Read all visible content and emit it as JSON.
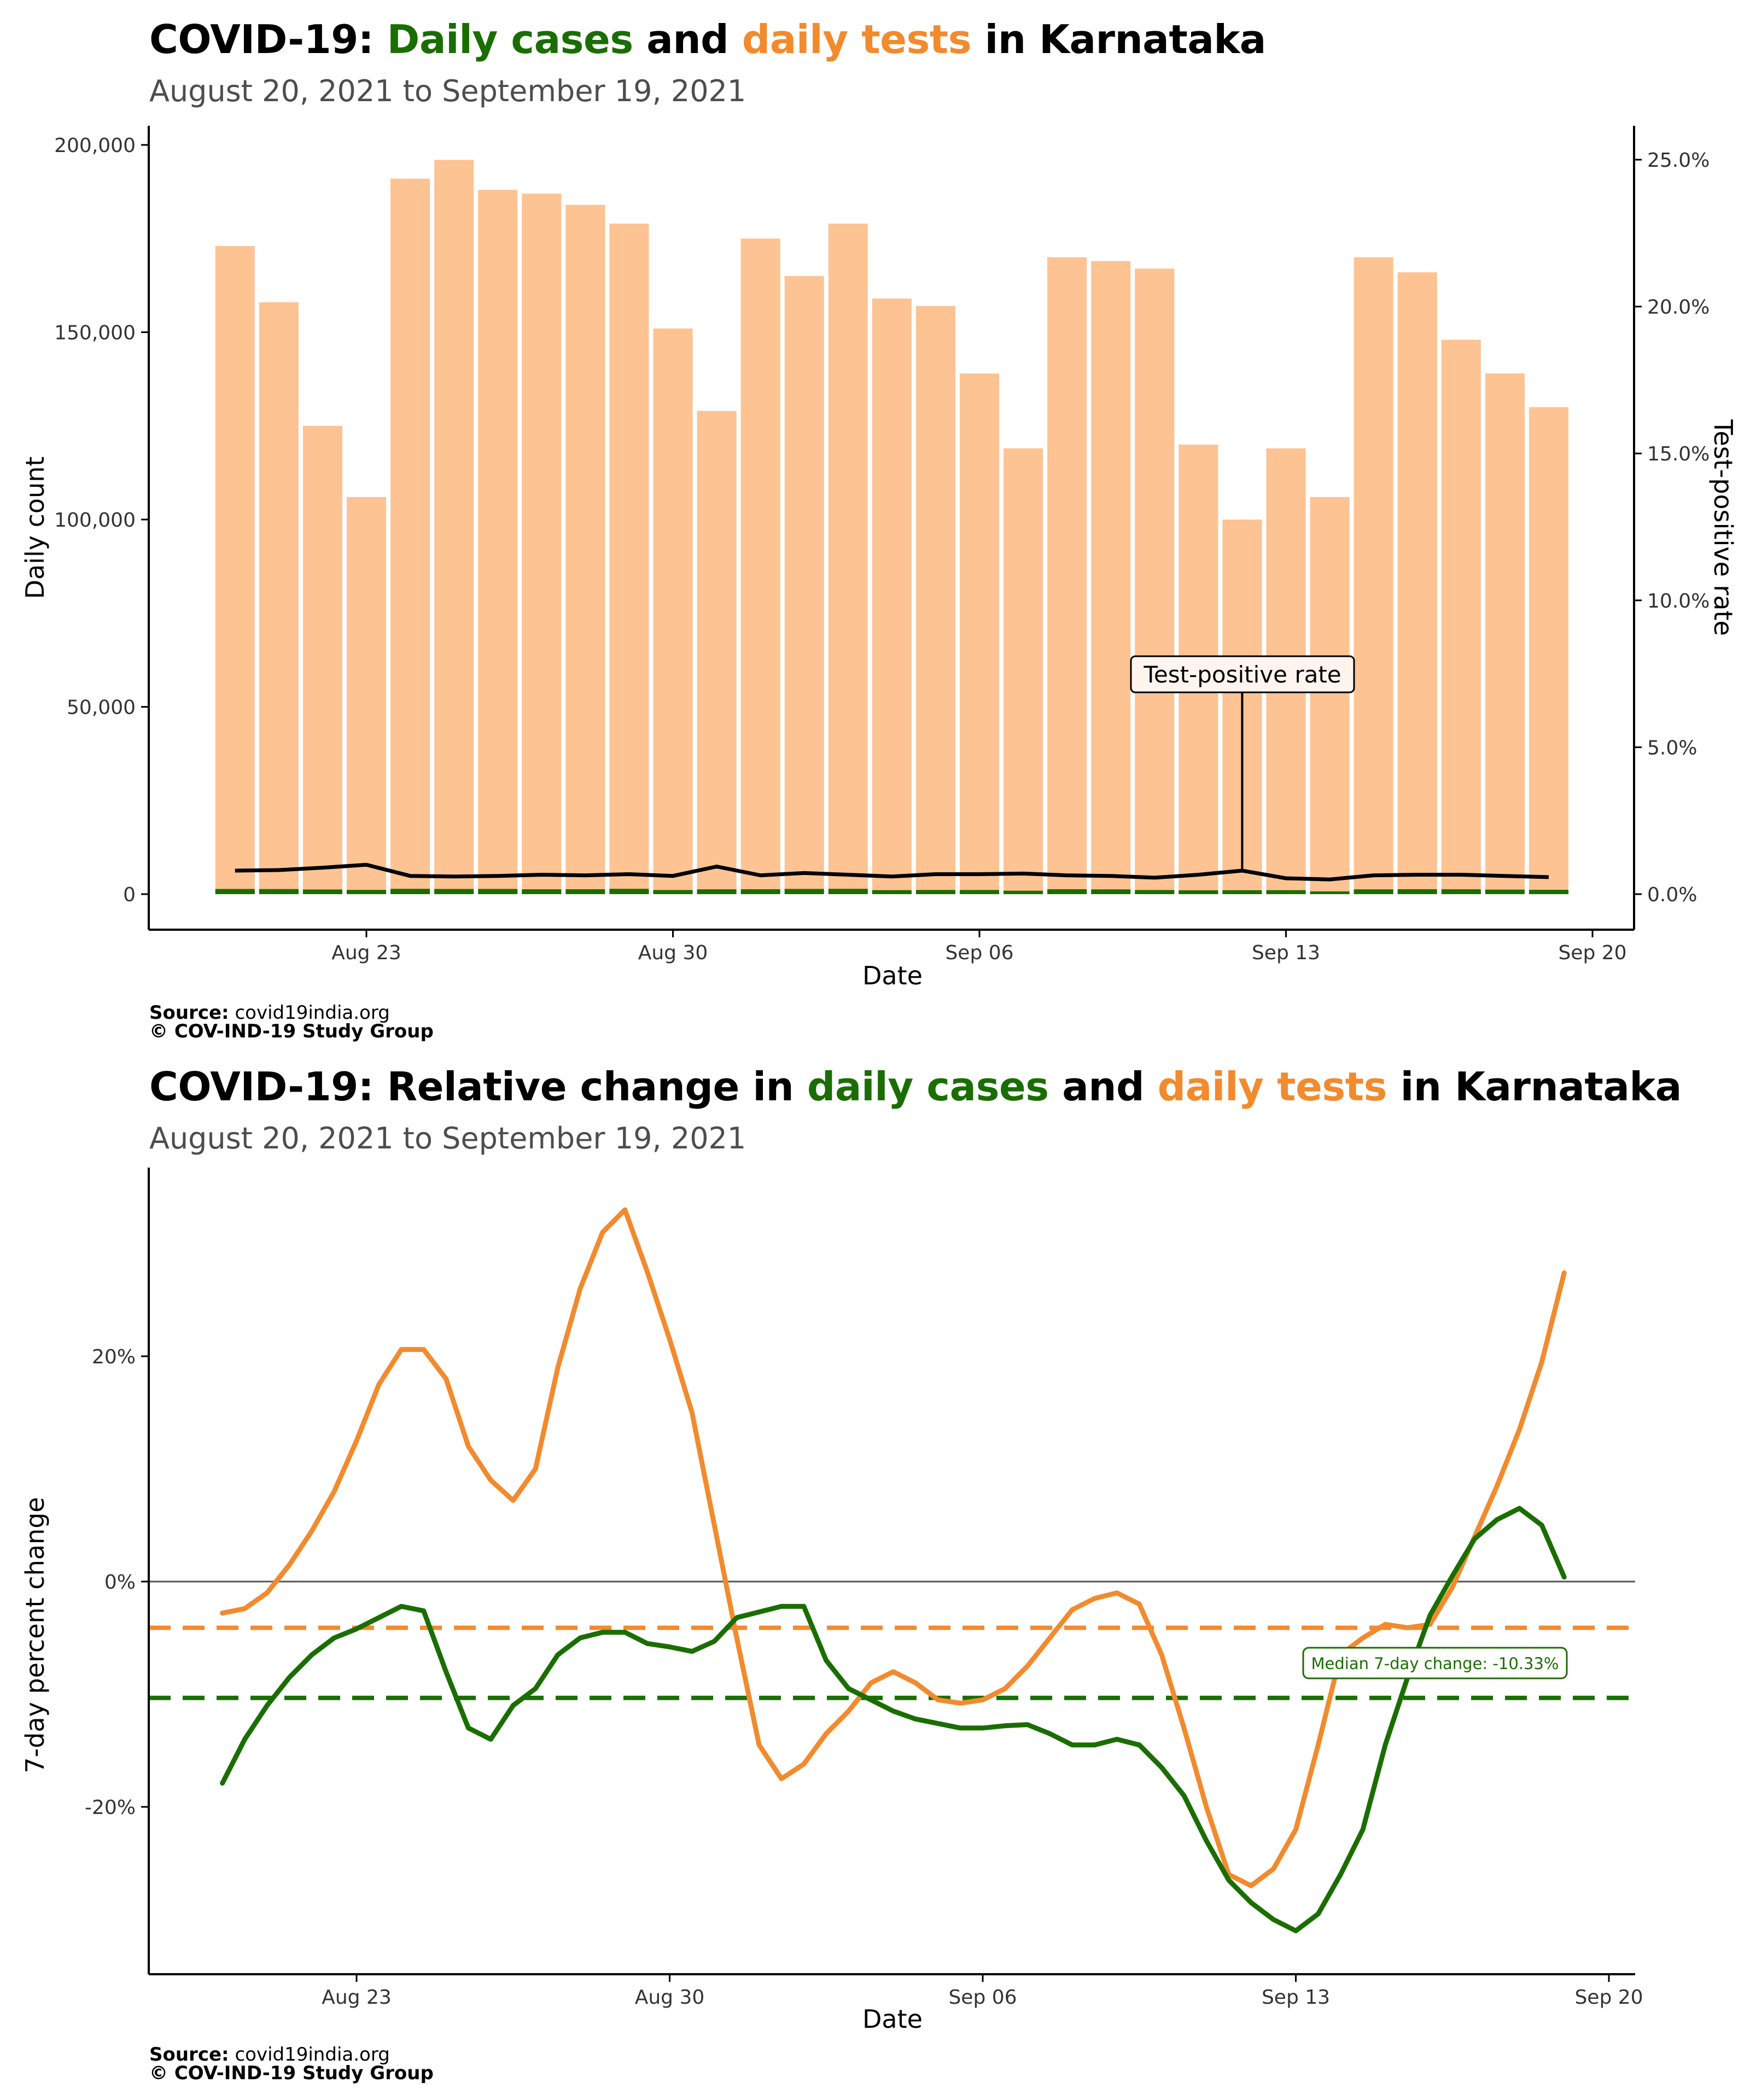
{
  "chart1": {
    "title": {
      "p1": "COVID-19: ",
      "p2": "Daily cases",
      "p3": " and ",
      "p4": "daily tests",
      "p5": " in Karnataka"
    },
    "subtitle": "August 20, 2021 to September 19, 2021",
    "source_label": "Source:",
    "source": "covid19india.org",
    "copyright": "© COV-IND-19 Study Group"
  },
  "chart2": {
    "title": {
      "p1": "COVID-19: Relative change in ",
      "p2": "daily cases",
      "p3": " and ",
      "p4": "daily tests",
      "p5": " in Karnataka"
    },
    "subtitle": "August 20, 2021 to September 19, 2021",
    "source_label": "Source:",
    "source": "covid19india.org",
    "copyright": "© COV-IND-19 Study Group"
  },
  "colors": {
    "cases": "#1a6e00",
    "tests": "#f28a2e",
    "tests_bar": "#fdc393",
    "tpr": "#000000"
  },
  "chart_data": [
    {
      "type": "bar",
      "xlabel": "Date",
      "ylabel": "Daily count",
      "y2label": "Test-positive rate",
      "annotation": "Test-positive rate",
      "annotation_date": "2021-09-12",
      "x_ticks": [
        {
          "label": "Aug 23",
          "date": "2021-08-23"
        },
        {
          "label": "Aug 30",
          "date": "2021-08-30"
        },
        {
          "label": "Sep 06",
          "date": "2021-09-06"
        },
        {
          "label": "Sep 13",
          "date": "2021-09-13"
        },
        {
          "label": "Sep 20",
          "date": "2021-09-20"
        }
      ],
      "y_ticks": [
        {
          "label": "0",
          "value": 0
        },
        {
          "label": "50,000",
          "value": 50000
        },
        {
          "label": "100,000",
          "value": 100000
        },
        {
          "label": "150,000",
          "value": 150000
        },
        {
          "label": "200,000",
          "value": 200000
        }
      ],
      "y2_ticks": [
        {
          "label": "0.0%",
          "value": 0
        },
        {
          "label": "5.0%",
          "value": 5
        },
        {
          "label": "10.0%",
          "value": 10
        },
        {
          "label": "15.0%",
          "value": 15
        },
        {
          "label": "20.0%",
          "value": 20
        },
        {
          "label": "25.0%",
          "value": 25
        }
      ],
      "ylim": [
        0,
        203000
      ],
      "y2lim": [
        0,
        25.4
      ],
      "dates": [
        "2021-08-20",
        "2021-08-21",
        "2021-08-22",
        "2021-08-23",
        "2021-08-24",
        "2021-08-25",
        "2021-08-26",
        "2021-08-27",
        "2021-08-28",
        "2021-08-29",
        "2021-08-30",
        "2021-08-31",
        "2021-09-01",
        "2021-09-02",
        "2021-09-03",
        "2021-09-04",
        "2021-09-05",
        "2021-09-06",
        "2021-09-07",
        "2021-09-08",
        "2021-09-09",
        "2021-09-10",
        "2021-09-11",
        "2021-09-12",
        "2021-09-13",
        "2021-09-14",
        "2021-09-15",
        "2021-09-16",
        "2021-09-17",
        "2021-09-18",
        "2021-09-19"
      ],
      "series": [
        {
          "name": "daily tests",
          "values": [
            173000,
            158000,
            125000,
            106000,
            191000,
            196000,
            188000,
            187000,
            184000,
            179000,
            151000,
            129000,
            175000,
            165000,
            179000,
            159000,
            157000,
            139000,
            119000,
            170000,
            169000,
            167000,
            120000,
            100000,
            119000,
            106000,
            170000,
            166000,
            148000,
            139000,
            130000
          ]
        },
        {
          "name": "daily cases",
          "values": [
            1380,
            1360,
            1250,
            1140,
            1420,
            1380,
            1390,
            1300,
            1310,
            1420,
            1100,
            1290,
            1310,
            1390,
            1420,
            1070,
            1120,
            1110,
            920,
            1320,
            1270,
            1100,
            1030,
            1050,
            1060,
            730,
            1280,
            1320,
            1300,
            1210,
            1160
          ]
        },
        {
          "name": "test-positive rate",
          "values": [
            0.8,
            0.82,
            0.9,
            1.0,
            0.62,
            0.6,
            0.62,
            0.66,
            0.64,
            0.68,
            0.62,
            0.94,
            0.64,
            0.72,
            0.66,
            0.6,
            0.68,
            0.68,
            0.7,
            0.64,
            0.62,
            0.56,
            0.66,
            0.8,
            0.54,
            0.5,
            0.64,
            0.66,
            0.66,
            0.62,
            0.58
          ]
        }
      ]
    },
    {
      "type": "line",
      "xlabel": "Date",
      "ylabel": "7-day percent change",
      "annotation": "Median 7-day change: -10.33%",
      "x_ticks": [
        {
          "label": "Aug 23",
          "date": "2021-08-23"
        },
        {
          "label": "Aug 30",
          "date": "2021-08-30"
        },
        {
          "label": "Sep 06",
          "date": "2021-09-06"
        },
        {
          "label": "Sep 13",
          "date": "2021-09-13"
        },
        {
          "label": "Sep 20",
          "date": "2021-09-20"
        }
      ],
      "y_ticks": [
        {
          "label": "-20%",
          "value": -20
        },
        {
          "label": "0%",
          "value": 0
        },
        {
          "label": "20%",
          "value": 20
        }
      ],
      "ylim": [
        -34.4,
        36.4
      ],
      "median_tests": -4.1,
      "median_cases": -10.33,
      "dates": [
        "2021-08-20",
        "2021-08-20.5",
        "2021-08-21",
        "2021-08-21.5",
        "2021-08-22",
        "2021-08-22.5",
        "2021-08-23",
        "2021-08-23.5",
        "2021-08-24",
        "2021-08-24.5",
        "2021-08-25",
        "2021-08-25.5",
        "2021-08-26",
        "2021-08-26.5",
        "2021-08-27",
        "2021-08-27.5",
        "2021-08-28",
        "2021-08-28.5",
        "2021-08-29",
        "2021-08-29.5",
        "2021-08-30",
        "2021-08-30.5",
        "2021-08-31",
        "2021-08-31.5",
        "2021-09-01",
        "2021-09-01.5",
        "2021-09-02",
        "2021-09-02.5",
        "2021-09-03",
        "2021-09-03.5",
        "2021-09-04",
        "2021-09-04.5",
        "2021-09-05",
        "2021-09-05.5",
        "2021-09-06",
        "2021-09-06.5",
        "2021-09-07",
        "2021-09-07.5",
        "2021-09-08",
        "2021-09-08.5",
        "2021-09-09",
        "2021-09-09.5",
        "2021-09-10",
        "2021-09-10.5",
        "2021-09-11",
        "2021-09-11.5",
        "2021-09-12",
        "2021-09-12.5",
        "2021-09-13",
        "2021-09-13.5",
        "2021-09-14",
        "2021-09-14.5",
        "2021-09-15",
        "2021-09-15.5",
        "2021-09-16",
        "2021-09-16.5",
        "2021-09-17",
        "2021-09-17.5",
        "2021-09-18",
        "2021-09-18.5",
        "2021-09-19"
      ],
      "series": [
        {
          "name": "daily tests",
          "values": [
            -2.8,
            -2.4,
            -1.0,
            1.5,
            4.5,
            8.0,
            12.5,
            17.5,
            20.6,
            20.6,
            18.0,
            12.0,
            9.0,
            7.2,
            10.0,
            19.0,
            26.0,
            31.0,
            33.0,
            27.5,
            21.5,
            15.0,
            5.0,
            -5.0,
            -14.5,
            -17.5,
            -16.2,
            -13.5,
            -11.5,
            -9.0,
            -8.0,
            -9.0,
            -10.5,
            -10.8,
            -10.5,
            -9.5,
            -7.5,
            -5.0,
            -2.5,
            -1.5,
            -1.0,
            -2.0,
            -6.5,
            -13.0,
            -20.0,
            -26.0,
            -27.0,
            -25.5,
            -22.0,
            -14.5,
            -6.5,
            -5.0,
            -3.8,
            -4.1,
            -3.8,
            -0.5,
            4.0,
            8.5,
            13.5,
            19.5,
            27.4
          ]
        },
        {
          "name": "daily cases",
          "values": [
            -17.9,
            -14.0,
            -11.0,
            -8.5,
            -6.5,
            -5.0,
            -4.2,
            -3.2,
            -2.2,
            -2.6,
            -8.0,
            -13.0,
            -14.0,
            -11.0,
            -9.5,
            -6.5,
            -5.0,
            -4.5,
            -4.5,
            -5.5,
            -5.8,
            -6.2,
            -5.3,
            -3.2,
            -2.7,
            -2.2,
            -2.2,
            -7.0,
            -9.5,
            -10.5,
            -11.5,
            -12.2,
            -12.6,
            -13.0,
            -13.0,
            -12.8,
            -12.7,
            -13.5,
            -14.5,
            -14.5,
            -14.0,
            -14.5,
            -16.5,
            -19.0,
            -23.0,
            -26.5,
            -28.5,
            -30.0,
            -31.0,
            -29.5,
            -26.0,
            -22.0,
            -14.5,
            -8.5,
            -3.0,
            0.5,
            3.8,
            5.5,
            6.5,
            5.0,
            0.4
          ]
        }
      ]
    }
  ]
}
